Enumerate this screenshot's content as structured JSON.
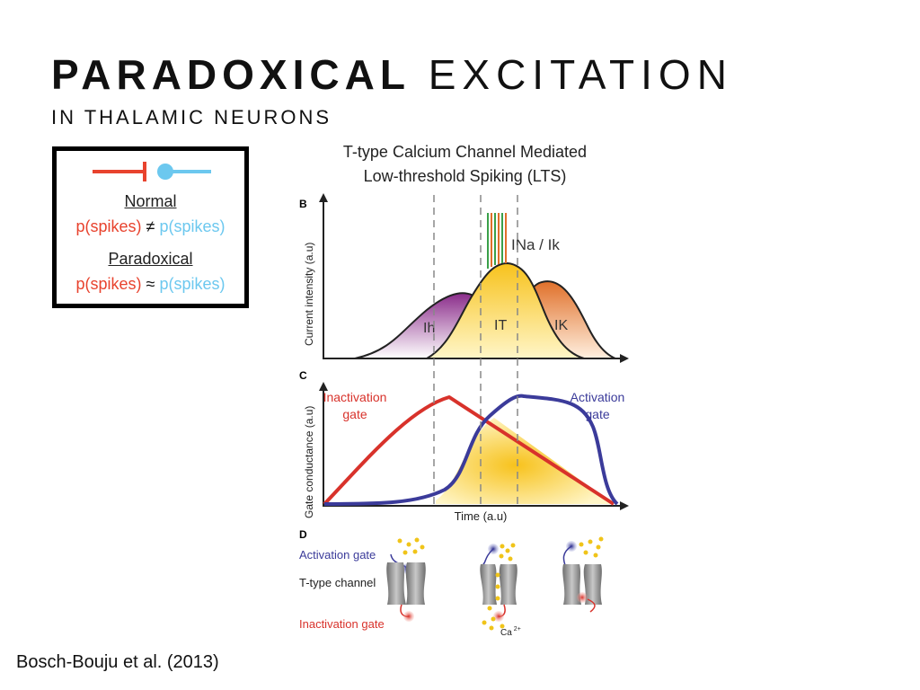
{
  "slide": {
    "title_bold": "PARADOXICAL",
    "title_light": "EXCITATION",
    "subtitle": "IN THALAMIC NEURONS",
    "citation": "Bosch-Bouju et al. (2013)"
  },
  "legend": {
    "normal_label": "Normal",
    "normal_left": "p(spikes)",
    "normal_op": " ≠ ",
    "normal_right": "p(spikes)",
    "paradoxical_label": "Paradoxical",
    "paradoxical_left": "p(spikes)",
    "paradoxical_op": " ≈ ",
    "paradoxical_right": "p(spikes)",
    "colors": {
      "inhibitory": "#e8432e",
      "excitatory": "#6cc8ef"
    }
  },
  "figure": {
    "title_line1": "T-type Calcium Channel Mediated",
    "title_line2": "Low-threshold Spiking (LTS)",
    "panel_b": {
      "letter": "B",
      "ylabel": "Current intensity (a.u)",
      "labels": {
        "ih": "Ih",
        "it": "IT",
        "ik": "IK",
        "ina_ik": "INa / Ik"
      }
    },
    "panel_c": {
      "letter": "C",
      "ylabel": "Gate conductance (a.u)",
      "xlabel": "Time (a.u)",
      "inactivation_line1": "Inactivation",
      "inactivation_line2": "gate",
      "activation_line1": "Activation",
      "activation_line2": "gate",
      "colors": {
        "inactivation": "#d8322b",
        "activation": "#3b3b9a"
      }
    },
    "panel_d": {
      "letter": "D",
      "activation_gate": "Activation gate",
      "t_type_channel": "T-type channel",
      "inactivation_gate": "Inactivation gate",
      "ca_label": "Ca",
      "ca_superscript": "2+"
    }
  }
}
